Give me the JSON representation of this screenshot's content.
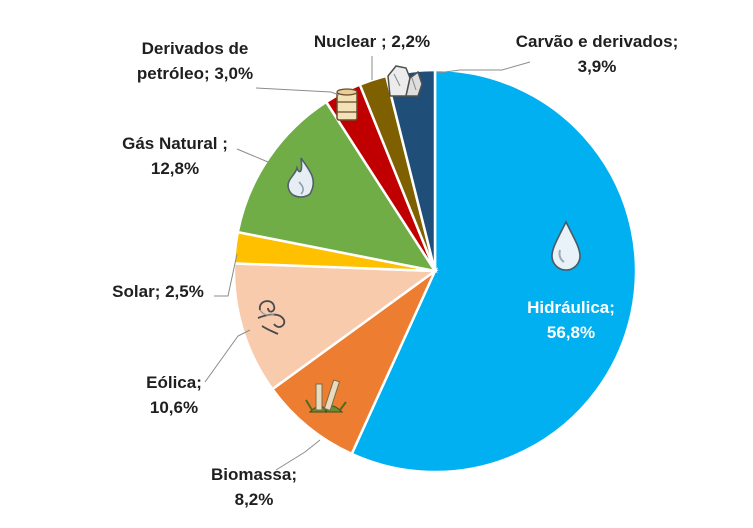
{
  "chart_data": {
    "type": "pie",
    "slices": [
      {
        "name": "Hidráulica",
        "value": 56.8,
        "label": [
          "Hidráulica;",
          "56,8%"
        ],
        "color": "#00B0F0",
        "icon": "water-drop-icon"
      },
      {
        "name": "Biomassa",
        "value": 8.2,
        "label": [
          "Biomassa;",
          "8,2%"
        ],
        "color": "#ED7D31",
        "icon": "sugarcane-icon"
      },
      {
        "name": "Eólica",
        "value": 10.6,
        "label": [
          "Eólica;",
          "10,6%"
        ],
        "color": "#F8CBAD",
        "icon": "wind-swirl-icon"
      },
      {
        "name": "Solar",
        "value": 2.5,
        "label": [
          "Solar; 2,5%"
        ],
        "color": "#FFC000",
        "icon": ""
      },
      {
        "name": "Gás Natural",
        "value": 12.8,
        "label": [
          "Gás Natural ;",
          "12,8%"
        ],
        "color": "#70AD47",
        "icon": "flame-icon"
      },
      {
        "name": "Derivados de petróleo",
        "value": 3.0,
        "label": [
          "Derivados de",
          "petróleo; 3,0%"
        ],
        "color": "#C00000",
        "icon": "oil-barrel-icon"
      },
      {
        "name": "Nuclear",
        "value": 2.2,
        "label": [
          "Nuclear ; 2,2%"
        ],
        "color": "#7F6000",
        "icon": ""
      },
      {
        "name": "Carvão e derivados",
        "value": 3.9,
        "label": [
          "Carvão e derivados;",
          "3,9%"
        ],
        "color": "#1F4E79",
        "icon": "coal-icon"
      }
    ],
    "legend": "none",
    "title": ""
  }
}
